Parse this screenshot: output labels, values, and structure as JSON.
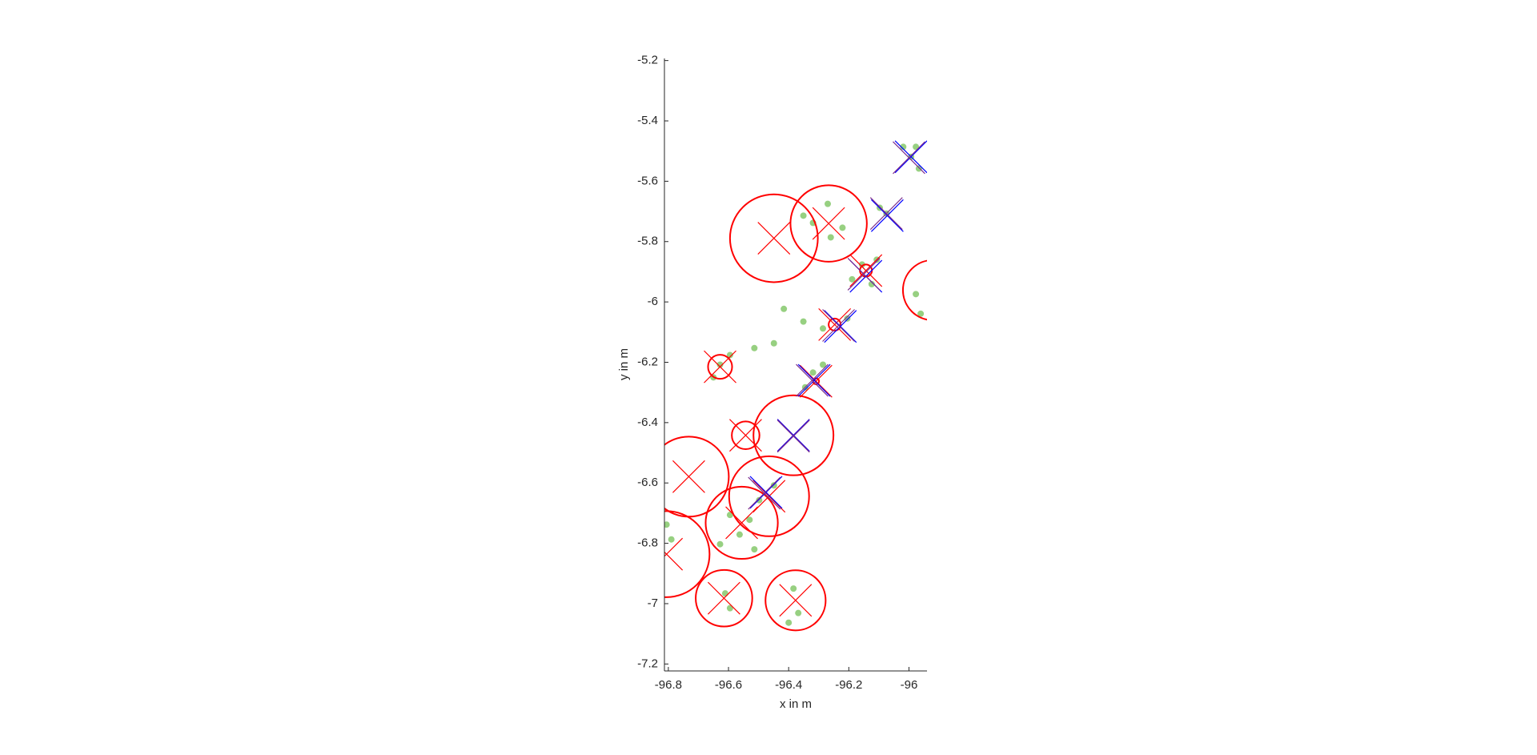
{
  "chart_data": {
    "type": "scatter",
    "xlabel": "x in m",
    "ylabel": "y in m",
    "xlim": [
      -96.813,
      -95.94
    ],
    "ylim": [
      -7.223,
      -5.193
    ],
    "xticks": [
      -96.8,
      -96.6,
      -96.4,
      -96.2,
      -96
    ],
    "yticks": [
      -7.2,
      -7,
      -6.8,
      -6.6,
      -6.4,
      -6.2,
      -6,
      -5.8,
      -5.6,
      -5.4,
      -5.2
    ],
    "series": [
      {
        "marker": "point",
        "color": "#7dc462",
        "x": [
          -95.993,
          -96.019,
          -95.967,
          -95.977,
          -96.075,
          -96.097,
          -96.27,
          -96.319,
          -96.221,
          -96.26,
          -96.351,
          -96.156,
          -96.107,
          -96.189,
          -96.124,
          -95.977,
          -95.961,
          -96.416,
          -96.351,
          -96.286,
          -96.205,
          -96.319,
          -96.286,
          -96.345,
          -96.628,
          -96.595,
          -96.65,
          -96.514,
          -96.449,
          -96.449,
          -96.498,
          -96.595,
          -96.563,
          -96.514,
          -96.628,
          -96.53,
          -96.806,
          -96.79,
          -96.611,
          -96.595,
          -96.384,
          -96.368,
          -96.4
        ],
        "y": [
          -5.519,
          -5.486,
          -5.558,
          -5.486,
          -5.707,
          -5.688,
          -5.675,
          -5.738,
          -5.754,
          -5.786,
          -5.714,
          -5.876,
          -5.86,
          -5.925,
          -5.941,
          -5.974,
          -6.039,
          -6.023,
          -6.065,
          -6.088,
          -6.055,
          -6.234,
          -6.208,
          -6.283,
          -6.208,
          -6.176,
          -6.25,
          -6.153,
          -6.137,
          -6.608,
          -6.657,
          -6.706,
          -6.771,
          -6.82,
          -6.803,
          -6.722,
          -6.738,
          -6.787,
          -6.966,
          -7.015,
          -6.95,
          -7.031,
          -7.063
        ]
      },
      {
        "marker": "circle",
        "color": "#ff0000",
        "x": [
          -96.449,
          -96.267,
          -96.143,
          -95.92,
          -96.247,
          -96.628,
          -96.309,
          -96.543,
          -96.384,
          -96.732,
          -96.465,
          -96.556,
          -96.806,
          -96.615,
          -96.377
        ],
        "y": [
          -5.789,
          -5.74,
          -5.896,
          -5.961,
          -6.075,
          -6.215,
          -6.263,
          -6.442,
          -6.442,
          -6.579,
          -6.644,
          -6.732,
          -6.836,
          -6.982,
          -6.989
        ],
        "r": [
          0.146,
          0.127,
          0.02,
          0.1,
          0.02,
          0.04,
          0.01,
          0.046,
          0.133,
          0.133,
          0.133,
          0.12,
          0.143,
          0.094,
          0.1
        ]
      },
      {
        "marker": "x",
        "color": "#ff0000",
        "x": [
          -96.449,
          -96.267,
          -96.143,
          -96.247,
          -96.628,
          -96.309,
          -96.543,
          -96.384,
          -96.732,
          -96.465,
          -96.556,
          -96.806,
          -96.615,
          -96.377
        ],
        "y": [
          -5.789,
          -5.74,
          -5.896,
          -6.075,
          -6.215,
          -6.263,
          -6.442,
          -6.442,
          -6.579,
          -6.644,
          -6.732,
          -6.836,
          -6.982,
          -6.989
        ]
      },
      {
        "marker": "x",
        "color": "#0000ff",
        "x": [
          -95.993,
          -96.072,
          -96.143,
          -96.228,
          -96.315,
          -96.384,
          -96.475
        ],
        "y": [
          -5.519,
          -5.714,
          -5.915,
          -6.081,
          -6.26,
          -6.442,
          -6.631
        ]
      },
      {
        "marker": "x",
        "color": "#7e2f8e",
        "x": [
          -96.0,
          -96.075,
          -96.15,
          -96.234,
          -96.322,
          -96.384,
          -96.481
        ],
        "y": [
          -5.522,
          -5.707,
          -5.908,
          -6.078,
          -6.26,
          -6.445,
          -6.634
        ]
      }
    ]
  }
}
